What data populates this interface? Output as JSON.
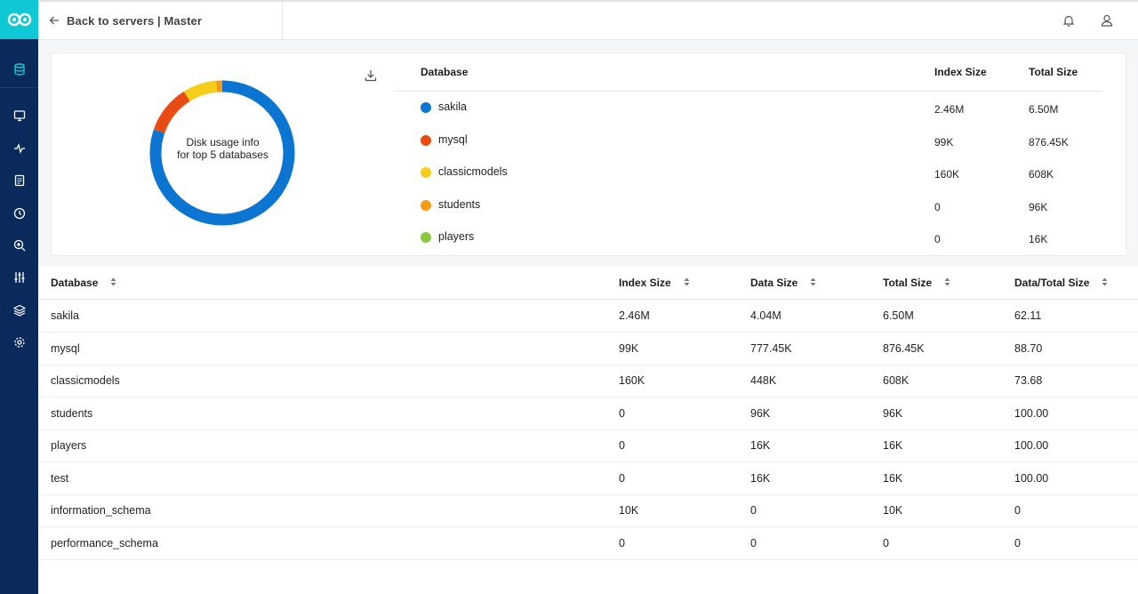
{
  "header": {
    "back_label": "Back to servers | Master",
    "icons": [
      "bell-icon",
      "user-icon"
    ]
  },
  "sidebar": {
    "items": [
      "database-icon",
      "monitor-icon",
      "activity-icon",
      "document-icon",
      "clock-icon",
      "zoom-in-icon",
      "sliders-icon",
      "layers-icon",
      "gear-icon"
    ]
  },
  "chart": {
    "center_line1": "Disk usage info",
    "center_line2": "for top 5 databases"
  },
  "chart_data": {
    "type": "pie",
    "categories": [
      "sakila",
      "mysql",
      "classicmodels",
      "students",
      "players"
    ],
    "values": [
      6.5,
      0.87645,
      0.608,
      0.096,
      0.016
    ],
    "colors": [
      "#0c75d1",
      "#ea4b12",
      "#f7cd1b",
      "#f79a16",
      "#8cc63f"
    ]
  },
  "legend": {
    "headers": {
      "database": "Database",
      "index": "Index Size",
      "total": "Total Size"
    },
    "rows": [
      {
        "name": "sakila",
        "index": "2.46M",
        "total": "6.50M",
        "color": "#0c75d1"
      },
      {
        "name": "mysql",
        "index": "99K",
        "total": "876.45K",
        "color": "#ea4b12"
      },
      {
        "name": "classicmodels",
        "index": "160K",
        "total": "608K",
        "color": "#f7cd1b"
      },
      {
        "name": "students",
        "index": "0",
        "total": "96K",
        "color": "#f79a16"
      },
      {
        "name": "players",
        "index": "0",
        "total": "16K",
        "color": "#8cc63f"
      }
    ]
  },
  "table": {
    "headers": {
      "database": "Database",
      "index": "Index Size",
      "data": "Data Size",
      "total": "Total Size",
      "ratio": "Data/Total Size"
    },
    "rows": [
      {
        "database": "sakila",
        "index": "2.46M",
        "data": "4.04M",
        "total": "6.50M",
        "ratio": "62.11"
      },
      {
        "database": "mysql",
        "index": "99K",
        "data": "777.45K",
        "total": "876.45K",
        "ratio": "88.70"
      },
      {
        "database": "classicmodels",
        "index": "160K",
        "data": "448K",
        "total": "608K",
        "ratio": "73.68"
      },
      {
        "database": "students",
        "index": "0",
        "data": "96K",
        "total": "96K",
        "ratio": "100.00"
      },
      {
        "database": "players",
        "index": "0",
        "data": "16K",
        "total": "16K",
        "ratio": "100.00"
      },
      {
        "database": "test",
        "index": "0",
        "data": "16K",
        "total": "16K",
        "ratio": "100.00"
      },
      {
        "database": "information_schema",
        "index": "10K",
        "data": "0",
        "total": "10K",
        "ratio": "0"
      },
      {
        "database": "performance_schema",
        "index": "0",
        "data": "0",
        "total": "0",
        "ratio": "0"
      }
    ]
  }
}
